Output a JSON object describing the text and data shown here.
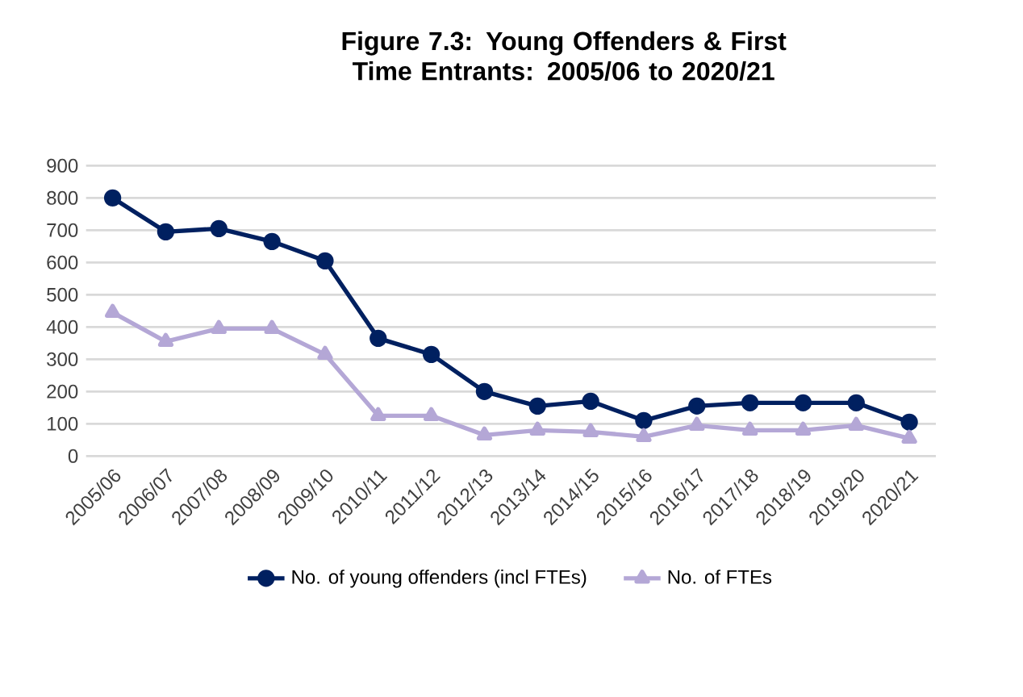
{
  "chart_data": {
    "type": "line",
    "title": "Figure 7.3: Young Offenders & First Time Entrants: 2005/06 to 2020/21",
    "categories": [
      "2005/06",
      "2006/07",
      "2007/08",
      "2008/09",
      "2009/10",
      "2010/11",
      "2011/12",
      "2012/13",
      "2013/14",
      "2014/15",
      "2015/16",
      "2016/17",
      "2017/18",
      "2018/19",
      "2019/20",
      "2020/21"
    ],
    "series": [
      {
        "name": "No. of young offenders (incl FTEs)",
        "color": "#002060",
        "marker": "circle",
        "values": [
          800,
          695,
          705,
          665,
          605,
          365,
          315,
          200,
          155,
          170,
          110,
          155,
          165,
          165,
          165,
          105
        ]
      },
      {
        "name": "No. of FTEs",
        "color": "#b4a7d6",
        "marker": "triangle",
        "values": [
          445,
          355,
          395,
          395,
          315,
          125,
          125,
          65,
          80,
          75,
          60,
          95,
          80,
          80,
          95,
          55
        ]
      }
    ],
    "ylim": [
      0,
      900
    ],
    "yticks": [
      0,
      100,
      200,
      300,
      400,
      500,
      600,
      700,
      800,
      900
    ],
    "grid": "y",
    "legend": "bottom"
  }
}
